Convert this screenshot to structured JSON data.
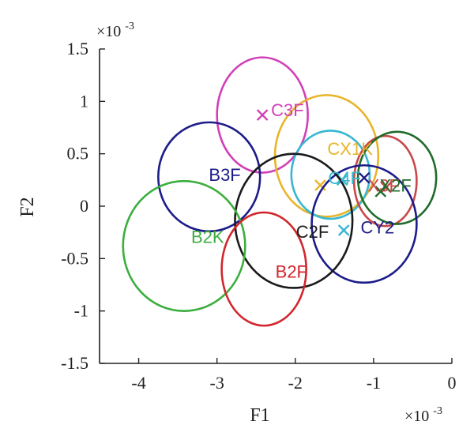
{
  "chart_data": {
    "type": "scatter",
    "title": "",
    "xlabel": "F1",
    "ylabel": "F2",
    "x_multiplier_label": "×10",
    "x_multiplier_exp": "-3",
    "y_multiplier_label": "×10",
    "y_multiplier_exp": "-3",
    "xlim": [
      -4.5,
      0
    ],
    "ylim": [
      -1.5,
      1.5
    ],
    "xticks": [
      -4,
      -3,
      -2,
      -1,
      0
    ],
    "xtick_labels": [
      "-4",
      "-3",
      "-2",
      "-1",
      "0"
    ],
    "yticks": [
      -1.5,
      -1,
      -0.5,
      0,
      0.5,
      1,
      1.5
    ],
    "ytick_labels": [
      "-1.5",
      "-1",
      "-0.5",
      "0",
      "0.5",
      "1",
      "1.5"
    ],
    "groups": [
      {
        "name": "C3F",
        "color": "#d23fb7",
        "center": [
          -2.42,
          0.87
        ],
        "rx": 0.58,
        "ry": 0.55,
        "marker": [
          -2.42,
          0.87
        ],
        "label_at": [
          -2.1,
          0.92
        ]
      },
      {
        "name": "CX1K",
        "color": "#e8b42a",
        "center": [
          -1.6,
          0.48
        ],
        "rx": 0.66,
        "ry": 0.58,
        "marker": [
          -1.68,
          0.2
        ],
        "label_at": [
          -1.3,
          0.55
        ]
      },
      {
        "name": "B3F",
        "color": "#1c1c8a",
        "center": [
          -3.1,
          0.28
        ],
        "rx": 0.65,
        "ry": 0.52,
        "marker": null,
        "label_at": [
          -2.9,
          0.3
        ]
      },
      {
        "name": "C4F",
        "color": "#38b7d2",
        "center": [
          -1.55,
          0.3
        ],
        "rx": 0.5,
        "ry": 0.42,
        "marker": [
          -1.4,
          0.25
        ],
        "label_at": [
          -1.37,
          0.27
        ]
      },
      {
        "name": "X3F",
        "color": "#c8484a",
        "center": [
          -0.85,
          0.24
        ],
        "rx": 0.4,
        "ry": 0.43,
        "marker": [
          -0.84,
          0.18
        ],
        "label_at": [
          -0.87,
          0.2
        ]
      },
      {
        "name": "X2F",
        "color": "#206b2a",
        "center": [
          -0.7,
          0.27
        ],
        "rx": 0.5,
        "ry": 0.44,
        "marker": [
          -0.91,
          0.14
        ],
        "label_at": [
          -0.72,
          0.2
        ]
      },
      {
        "name": "CY2",
        "color": "#1c1c8a",
        "center": [
          -1.12,
          -0.17
        ],
        "rx": 0.67,
        "ry": 0.56,
        "marker": [
          -1.12,
          0.27
        ],
        "label_at": [
          -0.95,
          -0.2
        ]
      },
      {
        "name": "C2F",
        "color": "#1a1a1a",
        "center": [
          -2.02,
          -0.14
        ],
        "rx": 0.75,
        "ry": 0.64,
        "marker": null,
        "label_at": [
          -1.78,
          -0.24
        ]
      },
      {
        "name": "B2K",
        "color": "#3cae3e",
        "center": [
          -3.42,
          -0.38
        ],
        "rx": 0.78,
        "ry": 0.62,
        "marker": null,
        "label_at": [
          -3.12,
          -0.29
        ]
      },
      {
        "name": "B2F",
        "color": "#d1272c",
        "center": [
          -2.4,
          -0.6
        ],
        "rx": 0.54,
        "ry": 0.54,
        "marker": null,
        "label_at": [
          -2.05,
          -0.62
        ]
      },
      {
        "name": "",
        "color": "#38b7d2",
        "center": null,
        "rx": 0,
        "ry": 0,
        "marker": [
          -1.38,
          -0.23
        ],
        "label_at": null
      }
    ]
  }
}
